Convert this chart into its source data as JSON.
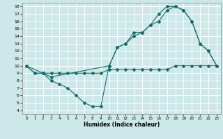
{
  "xlabel": "Humidex (Indice chaleur)",
  "bg_color": "#cce8e8",
  "grid_color": "#ffffff",
  "line_color": "#1a6b6b",
  "xlim": [
    -0.5,
    23.5
  ],
  "ylim": [
    3.5,
    18.5
  ],
  "xticks": [
    0,
    1,
    2,
    3,
    4,
    5,
    6,
    7,
    8,
    9,
    10,
    11,
    12,
    13,
    14,
    15,
    16,
    17,
    18,
    19,
    20,
    21,
    22,
    23
  ],
  "yticks": [
    4,
    5,
    6,
    7,
    8,
    9,
    10,
    11,
    12,
    13,
    14,
    15,
    16,
    17,
    18
  ],
  "line1_x": [
    0,
    1,
    2,
    3,
    4,
    5,
    6,
    7,
    8,
    9,
    10,
    11,
    12,
    13,
    14,
    15,
    16,
    17,
    18,
    19,
    20,
    21,
    22,
    23
  ],
  "line1_y": [
    10,
    9,
    9,
    8,
    7.5,
    7,
    6,
    5,
    4.5,
    4.5,
    10,
    12.5,
    13,
    14.5,
    14.5,
    15.5,
    16,
    17.5,
    18,
    17.5,
    16,
    13,
    12,
    10
  ],
  "line2_x": [
    0,
    1,
    2,
    3,
    4,
    5,
    6,
    7,
    8,
    9,
    10,
    11,
    12,
    13,
    14,
    15,
    16,
    17,
    18,
    19,
    20,
    21,
    22,
    23
  ],
  "line2_y": [
    10,
    9,
    9,
    9,
    9,
    9,
    9,
    9,
    9,
    9,
    9.5,
    9.5,
    9.5,
    9.5,
    9.5,
    9.5,
    9.5,
    9.5,
    10,
    10,
    10,
    10,
    10,
    10
  ],
  "line3_x": [
    0,
    2,
    3,
    10,
    11,
    12,
    13,
    14,
    15,
    16,
    17,
    18,
    19,
    20,
    21,
    22,
    23
  ],
  "line3_y": [
    10,
    9,
    8.5,
    10,
    12.5,
    13,
    14,
    14.5,
    15.5,
    17,
    18,
    18,
    17.5,
    16,
    13,
    12,
    10
  ]
}
